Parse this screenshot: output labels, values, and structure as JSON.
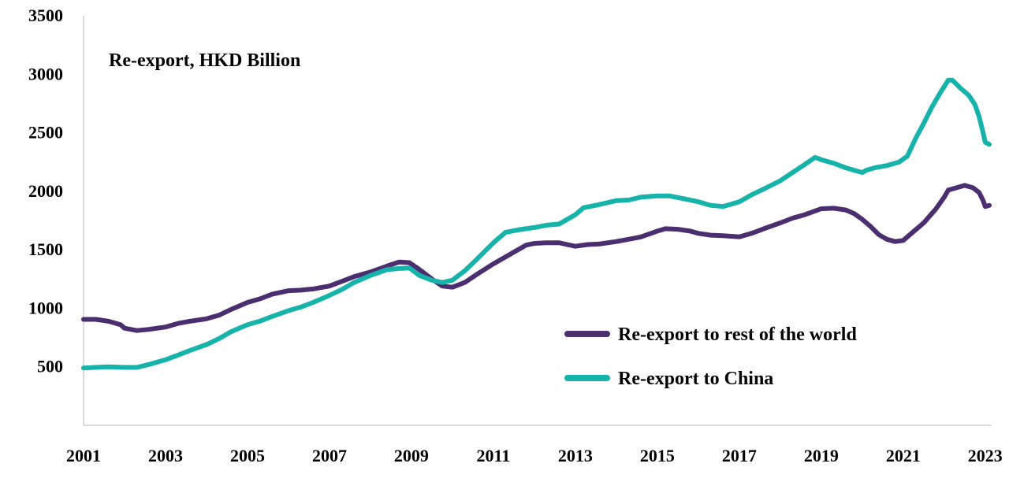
{
  "chart_data": {
    "type": "line",
    "title": "Re-export, HKD Billion",
    "xlabel": "",
    "ylabel": "",
    "xlim": [
      2001,
      2023.1
    ],
    "ylim": [
      0,
      3500
    ],
    "x_ticks": [
      "2001",
      "2003",
      "2005",
      "2007",
      "2009",
      "2011",
      "2013",
      "2015",
      "2017",
      "2019",
      "2021",
      "2023"
    ],
    "y_ticks": [
      "500",
      "1000",
      "1500",
      "2000",
      "2500",
      "3000",
      "3500"
    ],
    "legend_position": "bottom-right",
    "grid": false,
    "series": [
      {
        "name": "Re-export to rest of the world",
        "color": "#4b2e6f",
        "points": [
          [
            2001.0,
            905
          ],
          [
            2001.3,
            905
          ],
          [
            2001.6,
            890
          ],
          [
            2001.9,
            860
          ],
          [
            2002.0,
            830
          ],
          [
            2002.3,
            810
          ],
          [
            2002.6,
            820
          ],
          [
            2003.0,
            840
          ],
          [
            2003.3,
            870
          ],
          [
            2003.6,
            890
          ],
          [
            2004.0,
            910
          ],
          [
            2004.3,
            940
          ],
          [
            2004.6,
            990
          ],
          [
            2005.0,
            1050
          ],
          [
            2005.3,
            1080
          ],
          [
            2005.6,
            1120
          ],
          [
            2006.0,
            1150
          ],
          [
            2006.3,
            1155
          ],
          [
            2006.6,
            1165
          ],
          [
            2007.0,
            1190
          ],
          [
            2007.3,
            1230
          ],
          [
            2007.6,
            1270
          ],
          [
            2008.0,
            1310
          ],
          [
            2008.4,
            1360
          ],
          [
            2008.7,
            1395
          ],
          [
            2008.95,
            1390
          ],
          [
            2009.2,
            1330
          ],
          [
            2009.5,
            1250
          ],
          [
            2009.75,
            1190
          ],
          [
            2010.0,
            1180
          ],
          [
            2010.3,
            1220
          ],
          [
            2010.6,
            1290
          ],
          [
            2011.0,
            1380
          ],
          [
            2011.3,
            1440
          ],
          [
            2011.6,
            1500
          ],
          [
            2011.8,
            1540
          ],
          [
            2012.0,
            1555
          ],
          [
            2012.3,
            1560
          ],
          [
            2012.6,
            1560
          ],
          [
            2012.8,
            1545
          ],
          [
            2013.0,
            1530
          ],
          [
            2013.3,
            1545
          ],
          [
            2013.6,
            1550
          ],
          [
            2014.0,
            1570
          ],
          [
            2014.3,
            1590
          ],
          [
            2014.6,
            1610
          ],
          [
            2015.0,
            1660
          ],
          [
            2015.2,
            1680
          ],
          [
            2015.5,
            1675
          ],
          [
            2015.8,
            1660
          ],
          [
            2016.0,
            1640
          ],
          [
            2016.3,
            1625
          ],
          [
            2016.6,
            1620
          ],
          [
            2017.0,
            1610
          ],
          [
            2017.3,
            1640
          ],
          [
            2017.6,
            1680
          ],
          [
            2018.0,
            1730
          ],
          [
            2018.3,
            1770
          ],
          [
            2018.6,
            1800
          ],
          [
            2019.0,
            1850
          ],
          [
            2019.3,
            1855
          ],
          [
            2019.6,
            1840
          ],
          [
            2019.8,
            1810
          ],
          [
            2020.0,
            1760
          ],
          [
            2020.2,
            1700
          ],
          [
            2020.4,
            1630
          ],
          [
            2020.6,
            1590
          ],
          [
            2020.8,
            1570
          ],
          [
            2021.0,
            1580
          ],
          [
            2021.2,
            1640
          ],
          [
            2021.5,
            1730
          ],
          [
            2021.8,
            1850
          ],
          [
            2022.0,
            1950
          ],
          [
            2022.1,
            2010
          ],
          [
            2022.3,
            2030
          ],
          [
            2022.5,
            2050
          ],
          [
            2022.7,
            2030
          ],
          [
            2022.85,
            1990
          ],
          [
            2022.95,
            1920
          ],
          [
            2023.0,
            1870
          ],
          [
            2023.1,
            1880
          ]
        ]
      },
      {
        "name": "Re-export to China",
        "color": "#15b3aa",
        "points": [
          [
            2001.0,
            490
          ],
          [
            2001.3,
            495
          ],
          [
            2001.6,
            500
          ],
          [
            2002.0,
            495
          ],
          [
            2002.3,
            495
          ],
          [
            2002.6,
            520
          ],
          [
            2003.0,
            560
          ],
          [
            2003.3,
            600
          ],
          [
            2003.6,
            640
          ],
          [
            2004.0,
            690
          ],
          [
            2004.3,
            740
          ],
          [
            2004.6,
            800
          ],
          [
            2005.0,
            860
          ],
          [
            2005.3,
            890
          ],
          [
            2005.6,
            930
          ],
          [
            2006.0,
            980
          ],
          [
            2006.3,
            1010
          ],
          [
            2006.6,
            1050
          ],
          [
            2007.0,
            1110
          ],
          [
            2007.3,
            1160
          ],
          [
            2007.6,
            1220
          ],
          [
            2008.0,
            1280
          ],
          [
            2008.4,
            1330
          ],
          [
            2008.7,
            1340
          ],
          [
            2008.95,
            1345
          ],
          [
            2009.2,
            1280
          ],
          [
            2009.5,
            1240
          ],
          [
            2009.75,
            1220
          ],
          [
            2010.0,
            1240
          ],
          [
            2010.3,
            1320
          ],
          [
            2010.6,
            1420
          ],
          [
            2011.0,
            1560
          ],
          [
            2011.3,
            1650
          ],
          [
            2011.6,
            1670
          ],
          [
            2012.0,
            1690
          ],
          [
            2012.3,
            1710
          ],
          [
            2012.6,
            1720
          ],
          [
            2013.0,
            1800
          ],
          [
            2013.2,
            1860
          ],
          [
            2013.5,
            1880
          ],
          [
            2014.0,
            1920
          ],
          [
            2014.3,
            1925
          ],
          [
            2014.6,
            1950
          ],
          [
            2015.0,
            1960
          ],
          [
            2015.3,
            1960
          ],
          [
            2015.6,
            1940
          ],
          [
            2016.0,
            1910
          ],
          [
            2016.3,
            1880
          ],
          [
            2016.6,
            1870
          ],
          [
            2017.0,
            1910
          ],
          [
            2017.3,
            1970
          ],
          [
            2017.6,
            2020
          ],
          [
            2018.0,
            2090
          ],
          [
            2018.3,
            2160
          ],
          [
            2018.6,
            2230
          ],
          [
            2018.85,
            2290
          ],
          [
            2019.0,
            2270
          ],
          [
            2019.3,
            2240
          ],
          [
            2019.6,
            2200
          ],
          [
            2020.0,
            2160
          ],
          [
            2020.1,
            2180
          ],
          [
            2020.3,
            2200
          ],
          [
            2020.6,
            2220
          ],
          [
            2020.9,
            2250
          ],
          [
            2021.1,
            2300
          ],
          [
            2021.3,
            2450
          ],
          [
            2021.5,
            2580
          ],
          [
            2021.7,
            2720
          ],
          [
            2021.9,
            2840
          ],
          [
            2022.1,
            2950
          ],
          [
            2022.2,
            2950
          ],
          [
            2022.4,
            2880
          ],
          [
            2022.6,
            2820
          ],
          [
            2022.75,
            2740
          ],
          [
            2022.85,
            2640
          ],
          [
            2022.95,
            2500
          ],
          [
            2023.0,
            2420
          ],
          [
            2023.1,
            2400
          ]
        ]
      }
    ]
  }
}
